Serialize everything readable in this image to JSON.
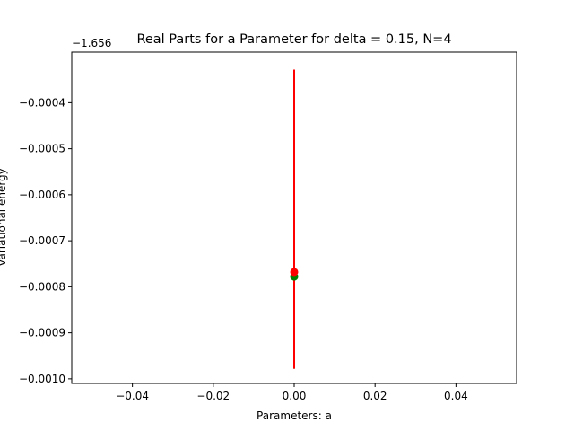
{
  "chart_data": {
    "type": "scatter",
    "title": "Real Parts for a Parameter for delta = 0.15, N=4",
    "xlabel": "Parameters: a",
    "ylabel": "Variational energy",
    "y_offset_label": "−1.656",
    "xlim": [
      -0.055,
      0.055
    ],
    "ylim": [
      -0.00101,
      -0.00029
    ],
    "x_ticks": [
      -0.04,
      -0.02,
      0.0,
      0.02,
      0.04
    ],
    "x_tick_labels": [
      "−0.04",
      "−0.02",
      "0.00",
      "0.02",
      "0.04"
    ],
    "y_ticks": [
      -0.0004,
      -0.0005,
      -0.0006,
      -0.0007,
      -0.0008,
      -0.0009,
      -0.001
    ],
    "y_tick_labels": [
      "−0.0004",
      "−0.0005",
      "−0.0006",
      "−0.0007",
      "−0.0008",
      "−0.0009",
      "−0.0010"
    ],
    "grid": false,
    "series": [
      {
        "color": "#008000",
        "marker": "circle",
        "points": [
          {
            "x": 0.0,
            "y": -0.000778
          }
        ],
        "errorbars": [
          {
            "x": 0.0,
            "y_low": -0.000978,
            "y_high": -0.000328
          }
        ]
      },
      {
        "color": "#ff0000",
        "marker": "circle",
        "points": [
          {
            "x": 0.0,
            "y": -0.000768
          }
        ],
        "errorbars": [
          {
            "x": 0.0,
            "y_low": -0.000978,
            "y_high": -0.000328
          }
        ]
      }
    ]
  }
}
